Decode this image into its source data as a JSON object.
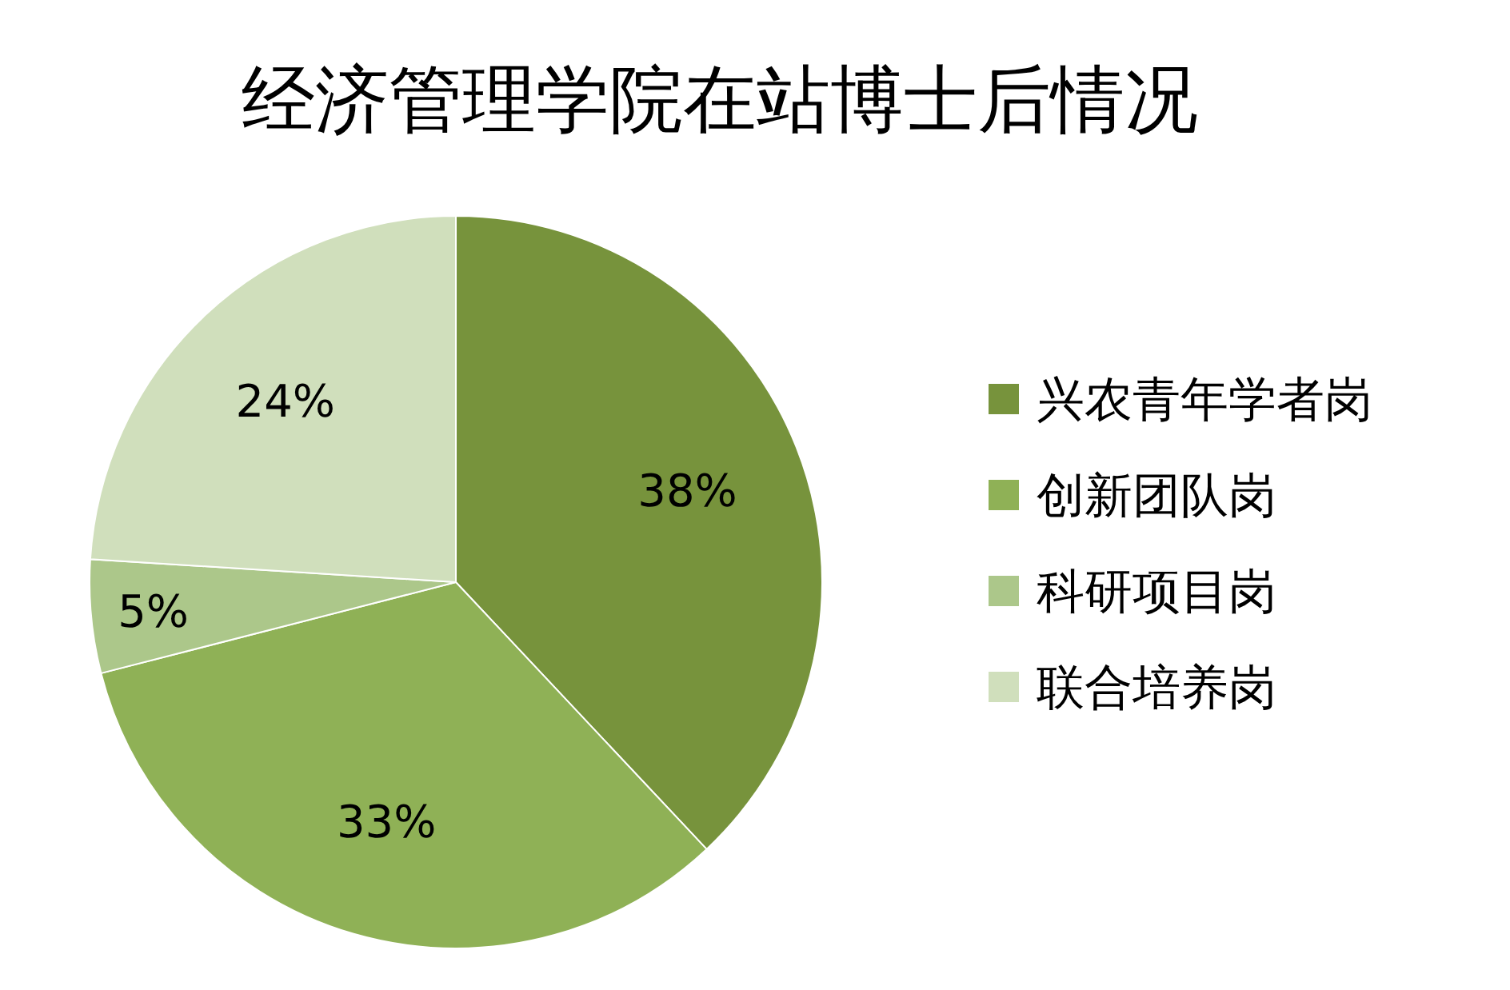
{
  "chart_data": {
    "type": "pie",
    "title": "经济管理学院在站博士后情况",
    "categories": [
      "兴农青年学者岗",
      "创新团队岗",
      "科研项目岗",
      "联合培养岗"
    ],
    "values": [
      38,
      33,
      5,
      24
    ],
    "colors": [
      "#77933c",
      "#8fb156",
      "#acc78a",
      "#d0dfbc"
    ],
    "value_labels": [
      "38%",
      "33%",
      "5%",
      "24%"
    ],
    "legend": "right"
  }
}
